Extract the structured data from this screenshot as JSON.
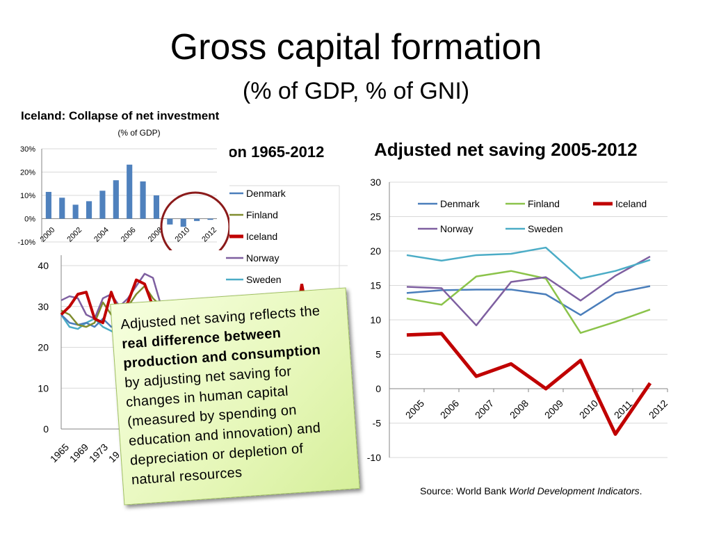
{
  "slide": {
    "title": "Gross capital formation",
    "subtitle": "(% of GDP, % of GNI)",
    "source_prefix": "Source: World Bank ",
    "source_italic": "World Development Indicators",
    "source_suffix": "."
  },
  "callout": {
    "part1": "Adjusted net saving reflects the ",
    "emphasis": "real difference between production and consumption",
    "part2": " by adjusting net saving for changes in human capital (measured by spending on education and innovation) and depreciation or depletion of natural resources"
  },
  "colors": {
    "Denmark": "#4a7ebb",
    "Finland": "#8bc34a",
    "Iceland": "#c00000",
    "Norway": "#7e5fa0",
    "Sweden": "#4bacc6",
    "Finland_left": "#7f8c2e",
    "inset_bar": "#4f81bd",
    "circle": "#8b1a1a"
  },
  "chart_data": [
    {
      "type": "line",
      "title": "Adjusted net saving 2005-2012",
      "x": [
        "2005",
        "2006",
        "2007",
        "2008",
        "2009",
        "2010",
        "2011",
        "2012"
      ],
      "ylim": [
        -10,
        30
      ],
      "yticks": [
        -10,
        -5,
        0,
        5,
        10,
        15,
        20,
        25,
        30
      ],
      "legend_position": "top",
      "series": [
        {
          "name": "Denmark",
          "values": [
            13.9,
            14.3,
            14.4,
            14.4,
            13.7,
            10.7,
            13.9,
            14.9
          ]
        },
        {
          "name": "Finland",
          "values": [
            13.1,
            12.2,
            16.3,
            17.1,
            16.0,
            8.1,
            9.7,
            11.5
          ]
        },
        {
          "name": "Iceland",
          "values": [
            7.8,
            8.0,
            1.8,
            3.6,
            0.0,
            4.1,
            -6.6,
            0.8
          ]
        },
        {
          "name": "Norway",
          "values": [
            14.8,
            14.6,
            9.2,
            15.5,
            16.2,
            12.8,
            16.4,
            19.2
          ]
        },
        {
          "name": "Sweden",
          "values": [
            19.4,
            18.6,
            19.4,
            19.6,
            20.5,
            16.0,
            17.1,
            18.7
          ]
        }
      ]
    },
    {
      "type": "line",
      "title_fragment": "ion 1965-2012",
      "x_visible_ticks": [
        "1965",
        "1969",
        "1973",
        "19"
      ],
      "ylim": [
        0,
        40
      ],
      "yticks": [
        0,
        10,
        20,
        30,
        40
      ],
      "legend": [
        "Denmark",
        "Finland",
        "Iceland",
        "Norway",
        "Sweden"
      ],
      "x_range": [
        1965,
        1983
      ],
      "series": [
        {
          "name": "Denmark",
          "x": [
            1965,
            1966,
            1967,
            1968,
            1969,
            1970,
            1971,
            1972,
            1973,
            1974,
            1975,
            1976,
            1977
          ],
          "values": [
            28,
            26,
            25.5,
            26,
            25,
            27,
            25,
            26,
            27,
            26,
            24,
            24.5,
            23
          ]
        },
        {
          "name": "Finland",
          "x": [
            1965,
            1966,
            1967,
            1968,
            1969,
            1970,
            1971,
            1972,
            1973,
            1974,
            1975,
            1976,
            1977
          ],
          "values": [
            29,
            28,
            25.5,
            25,
            26,
            31,
            28,
            29,
            30,
            33,
            35,
            32,
            30
          ]
        },
        {
          "name": "Iceland",
          "x": [
            1965,
            1966,
            1967,
            1968,
            1969,
            1970,
            1971,
            1972,
            1973,
            1974,
            1975,
            1976,
            1977
          ],
          "values": [
            28,
            30,
            33,
            33.5,
            27,
            26,
            33.5,
            28,
            31,
            36.5,
            35.5,
            30,
            28
          ]
        },
        {
          "name": "Norway",
          "x": [
            1965,
            1966,
            1967,
            1968,
            1969,
            1970,
            1971,
            1972,
            1973,
            1974,
            1975,
            1976,
            1977
          ],
          "values": [
            31.5,
            32.5,
            32,
            28,
            27,
            32,
            33,
            30,
            32,
            35,
            38,
            37,
            30
          ]
        },
        {
          "name": "Sweden",
          "x": [
            1965,
            1966,
            1967,
            1968,
            1969,
            1970,
            1971,
            1972,
            1973,
            1974,
            1975,
            1976,
            1977
          ],
          "values": [
            28,
            25,
            24.5,
            26,
            27,
            25,
            24,
            23,
            26,
            27,
            25.5,
            24,
            23
          ]
        }
      ],
      "partial_iceland_segment": {
        "x": [
          1981,
          1982,
          1983
        ],
        "values": [
          31,
          35.5,
          32
        ]
      }
    },
    {
      "type": "bar",
      "title": "Iceland: Collapse of net investment",
      "subtitle": "(% of GDP)",
      "categories": [
        "2000",
        "2001",
        "2002",
        "2003",
        "2004",
        "2005",
        "2006",
        "2007",
        "2008",
        "2009",
        "2010",
        "2011",
        "2012"
      ],
      "tick_labels": [
        "2000",
        "2002",
        "2004",
        "2006",
        "2008",
        "2010",
        "2012"
      ],
      "values": [
        11.5,
        9,
        6,
        7.5,
        12,
        16.5,
        23.2,
        16,
        10,
        -2.5,
        -3.5,
        -1,
        -0.5
      ],
      "ylim": [
        -10,
        30
      ],
      "yticks": [
        "-10%",
        "0%",
        "10%",
        "20%",
        "30%"
      ]
    }
  ]
}
